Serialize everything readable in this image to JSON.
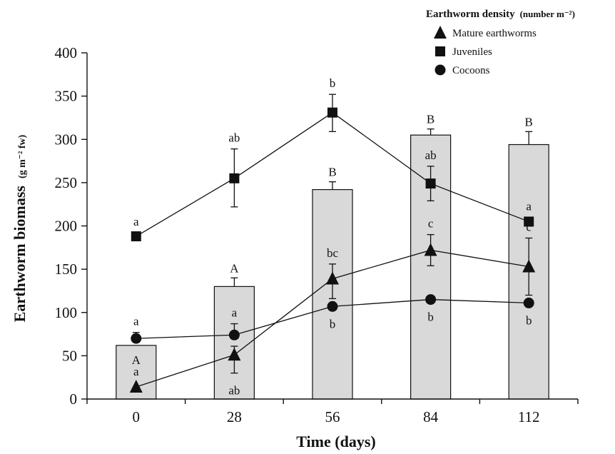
{
  "chart_data": {
    "type": "bar",
    "xlabel": "Time (days)",
    "ylabel_main": "Earthworm biomass",
    "ylabel_unit": "(g m⁻² fw)",
    "ylim": [
      0,
      400
    ],
    "yticks": [
      0,
      50,
      100,
      150,
      200,
      250,
      300,
      350,
      400
    ],
    "categories": [
      "0",
      "28",
      "56",
      "84",
      "112"
    ],
    "bars": {
      "values": [
        62,
        130,
        242,
        305,
        294
      ],
      "errors": [
        0,
        10,
        9,
        7,
        15
      ],
      "letters": [
        "A",
        "A",
        "B",
        "B",
        "B"
      ],
      "color": "#d9d9d9"
    },
    "legend": {
      "title": "Earthworm density",
      "title_unit": "(number m⁻²)",
      "position": "top-right"
    },
    "series": [
      {
        "name": "Mature earthworms",
        "marker": "triangle",
        "values": [
          14,
          51,
          139,
          172,
          153
        ],
        "err_up": [
          0,
          10,
          17,
          18,
          33
        ],
        "err_down": [
          0,
          21,
          23,
          18,
          33
        ],
        "letters": [
          "a",
          "ab",
          "bc",
          "c",
          "c"
        ],
        "letter_side": [
          "above",
          "below",
          "above",
          "above",
          "above"
        ]
      },
      {
        "name": "Juveniles",
        "marker": "square",
        "values": [
          188,
          255,
          331,
          249,
          205
        ],
        "err_up": [
          4,
          34,
          21,
          20,
          0
        ],
        "err_down": [
          0,
          33,
          22,
          20,
          0
        ],
        "letters": [
          "a",
          "ab",
          "b",
          "ab",
          "a"
        ],
        "letter_side": [
          "above",
          "above",
          "above",
          "above",
          "above"
        ]
      },
      {
        "name": "Cocoons",
        "marker": "circle",
        "values": [
          70,
          74,
          107,
          115,
          111
        ],
        "err_up": [
          7,
          13,
          0,
          0,
          0
        ],
        "err_down": [
          0,
          0,
          0,
          0,
          0
        ],
        "letters": [
          "a",
          "a",
          "b",
          "b",
          "b"
        ],
        "letter_side": [
          "above",
          "above",
          "below",
          "below",
          "below"
        ]
      }
    ],
    "bar_letter_first_below": true
  }
}
